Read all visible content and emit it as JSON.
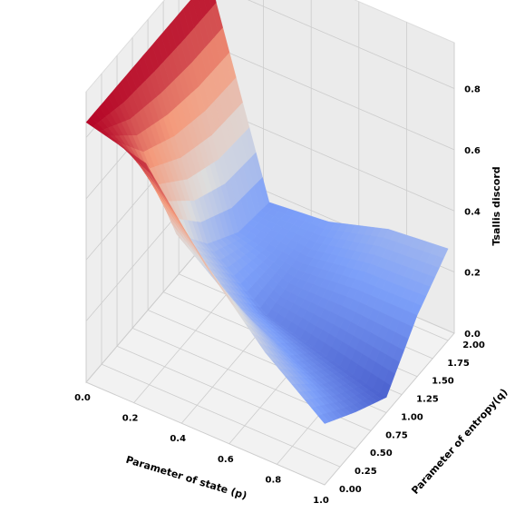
{
  "chart_data": {
    "type": "surface",
    "title": "",
    "xlabel": "Parameter of state (p)",
    "ylabel": "Parameter of entropy(q)",
    "zlabel": "Tsallis discord",
    "xlim": [
      0,
      1
    ],
    "ylim": [
      0,
      2.1
    ],
    "zlim": [
      0,
      0.95
    ],
    "xticks": [
      "0.0",
      "0.2",
      "0.4",
      "0.6",
      "0.8",
      "1.0"
    ],
    "yticks": [
      "0.00",
      "0.25",
      "0.50",
      "0.75",
      "1.00",
      "1.25",
      "1.50",
      "1.75",
      "2.00"
    ],
    "zticks": [
      "0.0",
      "0.2",
      "0.4",
      "0.6",
      "0.8"
    ],
    "colormap": "coolwarm",
    "grid": true,
    "surface_samples": {
      "p": [
        0.0,
        0.25,
        0.5,
        0.75,
        1.0
      ],
      "q": [
        0.0,
        0.5,
        1.0,
        1.5,
        2.0
      ],
      "z": [
        [
          0.85,
          0.85,
          0.85,
          0.85,
          0.85
        ],
        [
          0.8,
          0.45,
          0.3,
          0.22,
          0.2
        ],
        [
          0.55,
          0.3,
          0.15,
          0.18,
          0.22
        ],
        [
          0.35,
          0.2,
          0.1,
          0.2,
          0.28
        ],
        [
          0.2,
          0.12,
          0.05,
          0.2,
          0.3
        ]
      ]
    }
  }
}
